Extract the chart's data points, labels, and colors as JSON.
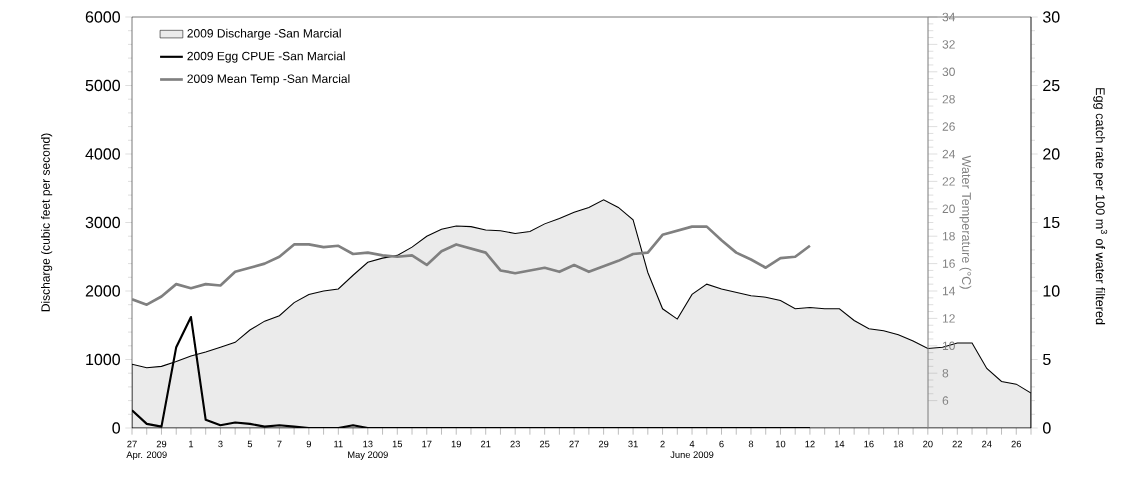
{
  "chart_data": {
    "type": "area",
    "xlabel": null,
    "ylabel": "Discharge (cubic feet per second)",
    "y2label": "Egg catch rate per 100 m$^{3}$ of water filtered",
    "y3label": "Water Temperature (°C)",
    "x": [
      "2009-04-27",
      "2009-04-28",
      "2009-04-29",
      "2009-04-30",
      "2009-05-01",
      "2009-05-02",
      "2009-05-03",
      "2009-05-04",
      "2009-05-05",
      "2009-05-06",
      "2009-05-07",
      "2009-05-08",
      "2009-05-09",
      "2009-05-10",
      "2009-05-11",
      "2009-05-12",
      "2009-05-13",
      "2009-05-14",
      "2009-05-15",
      "2009-05-16",
      "2009-05-17",
      "2009-05-18",
      "2009-05-19",
      "2009-05-20",
      "2009-05-21",
      "2009-05-22",
      "2009-05-23",
      "2009-05-24",
      "2009-05-25",
      "2009-05-26",
      "2009-05-27",
      "2009-05-28",
      "2009-05-29",
      "2009-05-30",
      "2009-05-31",
      "2009-06-01",
      "2009-06-02",
      "2009-06-03",
      "2009-06-04",
      "2009-06-05",
      "2009-06-06",
      "2009-06-07",
      "2009-06-08",
      "2009-06-09",
      "2009-06-10",
      "2009-06-11",
      "2009-06-12",
      "2009-06-13",
      "2009-06-14",
      "2009-06-15",
      "2009-06-16",
      "2009-06-17",
      "2009-06-18",
      "2009-06-19",
      "2009-06-20",
      "2009-06-21",
      "2009-06-22",
      "2009-06-23",
      "2009-06-24",
      "2009-06-25",
      "2009-06-26",
      "2009-06-27"
    ],
    "series": [
      {
        "name": "2009 Discharge -San Marcial",
        "color": "#ebebeb",
        "values": [
          930,
          880,
          900,
          970,
          1050,
          1110,
          1180,
          1250,
          1430,
          1560,
          1640,
          1830,
          1950,
          2000,
          2030,
          2230,
          2420,
          2480,
          2520,
          2640,
          2800,
          2900,
          2950,
          2940,
          2890,
          2880,
          2840,
          2870,
          2980,
          3060,
          3150,
          3220,
          3330,
          3220,
          3040,
          2270,
          1740,
          1590,
          1950,
          2100,
          2030,
          1980,
          1930,
          1910,
          1860,
          1740,
          1760,
          1740,
          1740,
          1570,
          1450,
          1420,
          1360,
          1270,
          1160,
          1180,
          1240,
          1240,
          870,
          680,
          640,
          510
        ]
      },
      {
        "name": "2009 Egg CPUE -San Marcial",
        "type": "line",
        "axis": "y2",
        "color": "#000000",
        "values": [
          1.3,
          0.3,
          0.1,
          5.9,
          8.1,
          0.6,
          0.2,
          0.4,
          0.3,
          0.1,
          0.2,
          0.1,
          0,
          0,
          0,
          0.2,
          0,
          0,
          0,
          0,
          0,
          0,
          0,
          0,
          0,
          0,
          0,
          0,
          0,
          0,
          0,
          0,
          0,
          0,
          0,
          0,
          0,
          0,
          0,
          0,
          0,
          0,
          0,
          0,
          0,
          0,
          0,
          null,
          null,
          null,
          null,
          null,
          null,
          null,
          null,
          null,
          null,
          null,
          null,
          null,
          null,
          null
        ]
      },
      {
        "name": "2009 Mean Temp -San Marcial",
        "type": "line",
        "axis": "y3",
        "color": "#808080",
        "values": [
          13.4,
          13.0,
          13.6,
          14.5,
          14.2,
          14.5,
          14.4,
          15.4,
          15.7,
          16.0,
          16.5,
          17.4,
          17.4,
          17.2,
          17.3,
          16.7,
          16.8,
          16.6,
          16.5,
          16.6,
          15.9,
          16.9,
          17.4,
          17.1,
          16.8,
          15.5,
          15.3,
          15.5,
          15.7,
          15.4,
          15.9,
          15.4,
          15.8,
          16.2,
          16.7,
          16.8,
          18.1,
          18.4,
          18.7,
          18.7,
          17.7,
          16.8,
          16.3,
          15.7,
          16.4,
          16.5,
          17.3,
          null,
          null,
          null,
          null,
          null,
          null,
          null,
          null,
          null,
          null,
          null,
          null,
          null,
          null,
          null
        ]
      }
    ],
    "xlim": [
      "2009-04-27",
      "2009-06-27"
    ],
    "xticks": [
      {
        "value": "2009-04-27",
        "label": "27"
      },
      {
        "value": "2009-04-28",
        "label": null
      },
      {
        "value": "2009-04-29",
        "label": "29"
      },
      {
        "value": "2009-04-30",
        "label": null
      },
      {
        "value": "2009-05-01",
        "label": "1"
      },
      {
        "value": "2009-05-02",
        "label": null
      },
      {
        "value": "2009-05-03",
        "label": "3"
      },
      {
        "value": "2009-05-04",
        "label": null
      },
      {
        "value": "2009-05-05",
        "label": "5"
      },
      {
        "value": "2009-05-06",
        "label": null
      },
      {
        "value": "2009-05-07",
        "label": "7"
      },
      {
        "value": "2009-05-08",
        "label": null
      },
      {
        "value": "2009-05-09",
        "label": "9"
      },
      {
        "value": "2009-05-10",
        "label": null
      },
      {
        "value": "2009-05-11",
        "label": "11"
      },
      {
        "value": "2009-05-12",
        "label": null
      },
      {
        "value": "2009-05-13",
        "label": "13"
      },
      {
        "value": "2009-05-14",
        "label": null
      },
      {
        "value": "2009-05-15",
        "label": "15"
      },
      {
        "value": "2009-05-16",
        "label": null
      },
      {
        "value": "2009-05-17",
        "label": "17"
      },
      {
        "value": "2009-05-18",
        "label": null
      },
      {
        "value": "2009-05-19",
        "label": "19"
      },
      {
        "value": "2009-05-20",
        "label": null
      },
      {
        "value": "2009-05-21",
        "label": "21"
      },
      {
        "value": "2009-05-22",
        "label": null
      },
      {
        "value": "2009-05-23",
        "label": "23"
      },
      {
        "value": "2009-05-24",
        "label": null
      },
      {
        "value": "2009-05-25",
        "label": "25"
      },
      {
        "value": "2009-05-26",
        "label": null
      },
      {
        "value": "2009-05-27",
        "label": "27"
      },
      {
        "value": "2009-05-28",
        "label": null
      },
      {
        "value": "2009-05-29",
        "label": "29"
      },
      {
        "value": "2009-05-30",
        "label": null
      },
      {
        "value": "2009-05-31",
        "label": "31"
      },
      {
        "value": "2009-06-01",
        "label": null
      },
      {
        "value": "2009-06-02",
        "label": "2"
      },
      {
        "value": "2009-06-03",
        "label": null
      },
      {
        "value": "2009-06-04",
        "label": "4"
      },
      {
        "value": "2009-06-05",
        "label": null
      },
      {
        "value": "2009-06-06",
        "label": "6"
      },
      {
        "value": "2009-06-07",
        "label": null
      },
      {
        "value": "2009-06-08",
        "label": "8"
      },
      {
        "value": "2009-06-09",
        "label": null
      },
      {
        "value": "2009-06-10",
        "label": "10"
      },
      {
        "value": "2009-06-11",
        "label": null
      },
      {
        "value": "2009-06-12",
        "label": "12"
      },
      {
        "value": "2009-06-13",
        "label": null
      },
      {
        "value": "2009-06-14",
        "label": "14"
      },
      {
        "value": "2009-06-15",
        "label": null
      },
      {
        "value": "2009-06-16",
        "label": "16"
      },
      {
        "value": "2009-06-17",
        "label": null
      },
      {
        "value": "2009-06-18",
        "label": "18"
      },
      {
        "value": "2009-06-19",
        "label": null
      },
      {
        "value": "2009-06-20",
        "label": "20"
      },
      {
        "value": "2009-06-21",
        "label": null
      },
      {
        "value": "2009-06-22",
        "label": "22"
      },
      {
        "value": "2009-06-23",
        "label": null
      },
      {
        "value": "2009-06-24",
        "label": "24"
      },
      {
        "value": "2009-06-25",
        "label": null
      },
      {
        "value": "2009-06-26",
        "label": "26"
      },
      {
        "value": "2009-06-27",
        "label": null
      }
    ],
    "x2lim": [
      "2009-04-27",
      "2009-06-27"
    ],
    "x2ticks": [
      {
        "value": "2009-04-28",
        "label": "Apr. 2009"
      },
      {
        "value": "2009-05-13",
        "label": "May 2009"
      },
      {
        "value": "2009-06-04",
        "label": "June 2009"
      }
    ],
    "ylim": [
      0,
      6000
    ],
    "yticks": [
      0,
      1000,
      2000,
      3000,
      4000,
      5000,
      6000
    ],
    "y2lim": [
      0,
      30
    ],
    "y2ticks": [
      0,
      5,
      10,
      15,
      20,
      25,
      30
    ],
    "y3lim": [
      4,
      34
    ],
    "y3ticks": [
      6,
      8,
      10,
      12,
      14,
      16,
      18,
      20,
      22,
      24,
      26,
      28,
      30,
      32,
      34
    ],
    "legend": "top left"
  }
}
